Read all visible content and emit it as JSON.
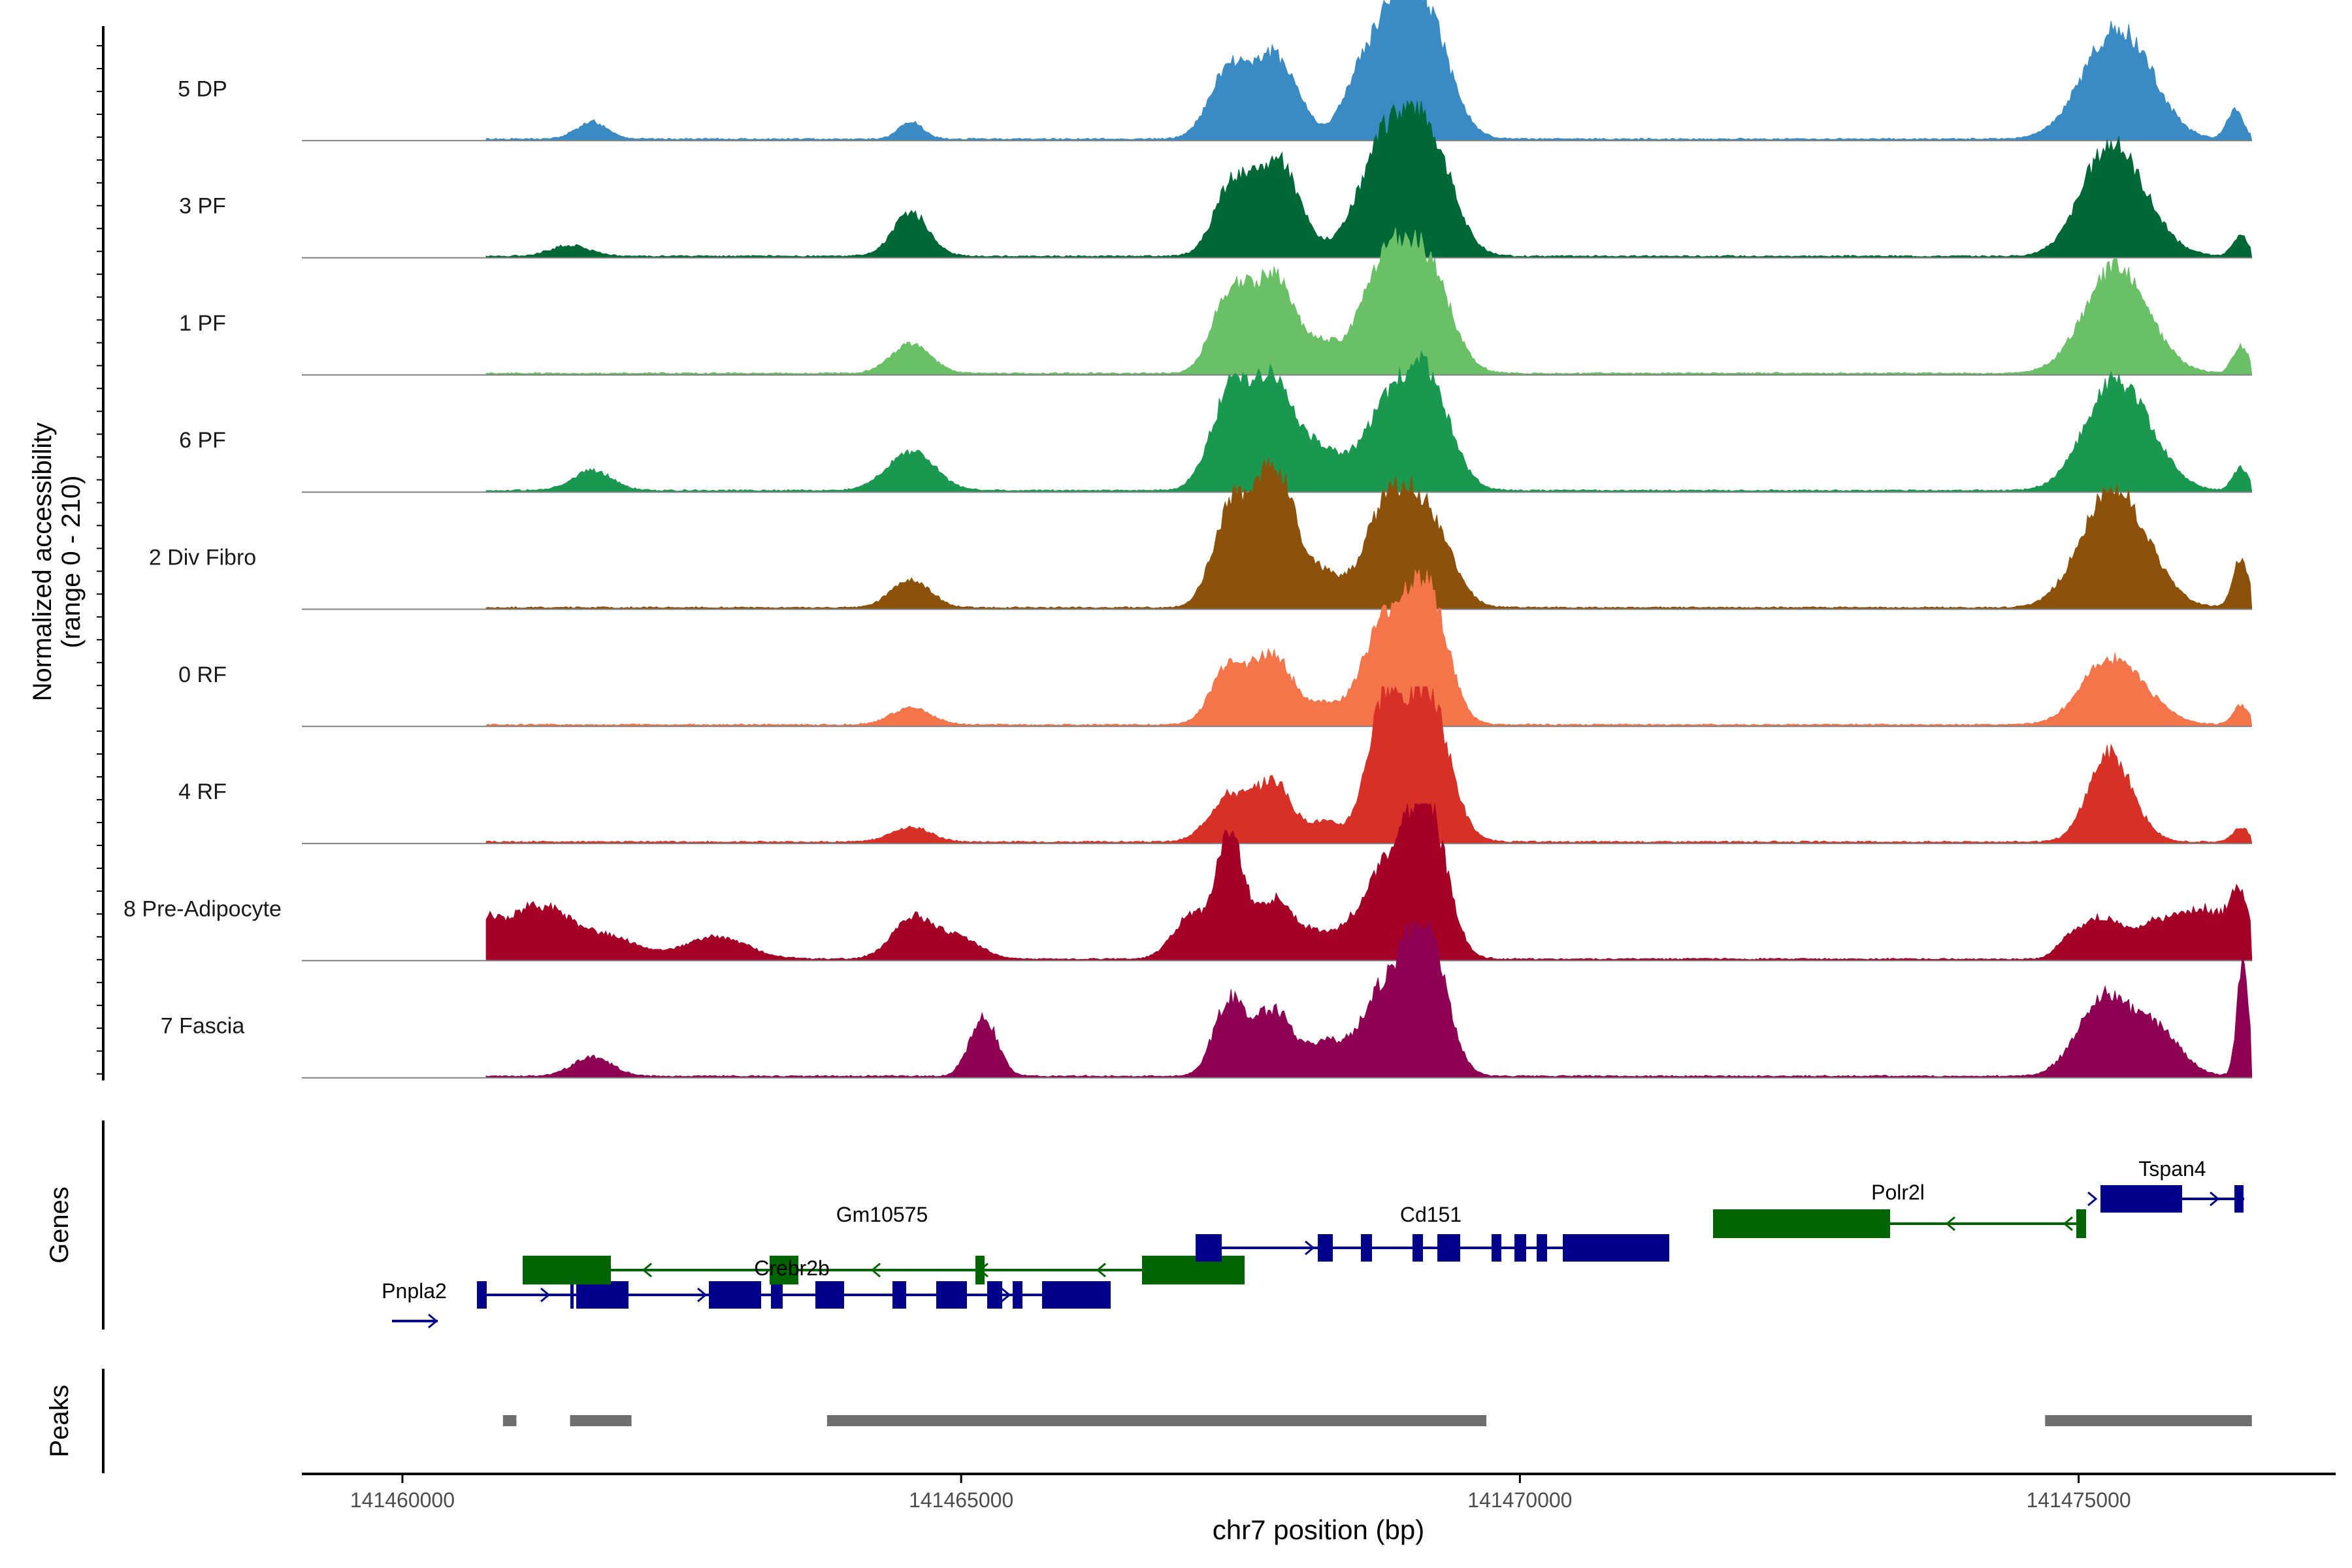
{
  "chart_data": {
    "type": "area",
    "title": "",
    "chromosome": "chr7",
    "xlabel": "chr7 position (bp)",
    "ylabel_line1": "Normalized accessibility",
    "ylabel_line2": "(range 0 - 210)",
    "y_range": [
      0,
      210
    ],
    "xlim": [
      141459100,
      141477300
    ],
    "region": [
      141460750,
      141476550
    ],
    "x_ticks": [
      {
        "value": 141460000,
        "label": "141460000"
      },
      {
        "value": 141465000,
        "label": "141465000"
      },
      {
        "value": 141470000,
        "label": "141470000"
      },
      {
        "value": 141475000,
        "label": "141475000"
      }
    ],
    "tracks": [
      {
        "name": "5 DP",
        "color": "#3a8ac4",
        "peaks": [
          [
            141461700,
            35,
            8
          ],
          [
            141464550,
            35,
            6
          ],
          [
            141467400,
            140,
            10
          ],
          [
            141467820,
            165,
            11
          ],
          [
            141468500,
            28,
            6
          ],
          [
            141468820,
            230,
            14
          ],
          [
            141469180,
            200,
            12
          ],
          [
            141475280,
            180,
            16
          ],
          [
            141475550,
            70,
            14
          ],
          [
            141476400,
            60,
            4
          ]
        ]
      },
      {
        "name": "3 PF",
        "color": "#006837",
        "peaks": [
          [
            141461500,
            22,
            10
          ],
          [
            141464550,
            90,
            9
          ],
          [
            141467420,
            140,
            9
          ],
          [
            141467830,
            195,
            11
          ],
          [
            141468820,
            240,
            14
          ],
          [
            141469200,
            200,
            12
          ],
          [
            141475250,
            195,
            14
          ],
          [
            141475550,
            65,
            14
          ],
          [
            141476450,
            40,
            4
          ]
        ]
      },
      {
        "name": "1 PF",
        "color": "#6ac066",
        "peaks": [
          [
            141464550,
            60,
            10
          ],
          [
            141467400,
            155,
            9
          ],
          [
            141467800,
            195,
            11
          ],
          [
            141468250,
            45,
            8
          ],
          [
            141468800,
            215,
            13
          ],
          [
            141469180,
            190,
            12
          ],
          [
            141475280,
            180,
            15
          ],
          [
            141475550,
            55,
            14
          ],
          [
            141476450,
            55,
            4
          ]
        ]
      },
      {
        "name": "6 PF",
        "color": "#1a9850",
        "peaks": [
          [
            141461700,
            40,
            10
          ],
          [
            141464550,
            80,
            12
          ],
          [
            141467400,
            180,
            10
          ],
          [
            141467800,
            215,
            12
          ],
          [
            141468250,
            60,
            8
          ],
          [
            141468800,
            150,
            14
          ],
          [
            141469170,
            200,
            12
          ],
          [
            141475250,
            170,
            14
          ],
          [
            141475550,
            95,
            14
          ],
          [
            141476450,
            45,
            4
          ]
        ]
      },
      {
        "name": "2 Div Fibro",
        "color": "#8c510a",
        "peaks": [
          [
            141464550,
            55,
            10
          ],
          [
            141467400,
            180,
            9
          ],
          [
            141467800,
            290,
            11
          ],
          [
            141468250,
            55,
            8
          ],
          [
            141468800,
            190,
            12
          ],
          [
            141469170,
            175,
            12
          ],
          [
            141475250,
            200,
            15
          ],
          [
            141475550,
            75,
            14
          ],
          [
            141476450,
            100,
            4
          ]
        ]
      },
      {
        "name": "0 RF",
        "color": "#f4754a",
        "peaks": [
          [
            141464550,
            35,
            10
          ],
          [
            141467400,
            120,
            9
          ],
          [
            141467800,
            140,
            10
          ],
          [
            141468250,
            35,
            8
          ],
          [
            141468800,
            205,
            12
          ],
          [
            141469180,
            255,
            10
          ],
          [
            141475250,
            115,
            14
          ],
          [
            141475550,
            40,
            14
          ],
          [
            141476450,
            40,
            4
          ]
        ]
      },
      {
        "name": "4 RF",
        "color": "#d73027",
        "peaks": [
          [
            141464550,
            30,
            10
          ],
          [
            141467400,
            95,
            10
          ],
          [
            141467800,
            120,
            9
          ],
          [
            141468250,
            40,
            8
          ],
          [
            141468780,
            260,
            9
          ],
          [
            141469170,
            300,
            11
          ],
          [
            141475250,
            160,
            10
          ],
          [
            141475450,
            40,
            10
          ],
          [
            141476450,
            30,
            4
          ]
        ]
      },
      {
        "name": "8 Pre-Adipocyte",
        "color": "#a50026",
        "peaks": [
          [
            141460750,
            50,
            5
          ],
          [
            141461000,
            70,
            12
          ],
          [
            141461350,
            80,
            12
          ],
          [
            141461850,
            45,
            14
          ],
          [
            141462800,
            45,
            16
          ],
          [
            141464550,
            80,
            10
          ],
          [
            141464950,
            45,
            12
          ],
          [
            141467050,
            85,
            9
          ],
          [
            141467400,
            240,
            7
          ],
          [
            141467800,
            120,
            10
          ],
          [
            141468200,
            40,
            10
          ],
          [
            141468800,
            175,
            14
          ],
          [
            141469170,
            280,
            10
          ],
          [
            141474900,
            30,
            6
          ],
          [
            141475200,
            80,
            10
          ],
          [
            141475700,
            70,
            12
          ],
          [
            141476150,
            95,
            12
          ],
          [
            141476450,
            110,
            5
          ]
        ]
      },
      {
        "name": "7 Fascia",
        "color": "#8e0152",
        "peaks": [
          [
            141461700,
            38,
            10
          ],
          [
            141465200,
            120,
            7
          ],
          [
            141467400,
            150,
            8
          ],
          [
            141467800,
            135,
            10
          ],
          [
            141468250,
            60,
            8
          ],
          [
            141468800,
            180,
            13
          ],
          [
            141469170,
            270,
            10
          ],
          [
            141475220,
            160,
            13
          ],
          [
            141475700,
            90,
            12
          ],
          [
            141476470,
            230,
            3
          ]
        ]
      }
    ],
    "genes": [
      {
        "name": "Pnpla2",
        "label_x": 141461000,
        "label_row": 3
      },
      {
        "name": "Crebr2b",
        "label_x": 141465000,
        "label_row": 2
      },
      {
        "name": "Gm10575",
        "label_x": 141465200,
        "label_row": 1
      },
      {
        "name": "Cd151",
        "label_x": 141469250,
        "label_row": 1
      },
      {
        "name": "Polr2l",
        "label_x": 141473200,
        "label_row": 0
      },
      {
        "name": "Tspan4",
        "label_x": 141475700,
        "label_row": -1
      }
    ],
    "gene_track_label": "Genes",
    "peak_track_label": "Peaks",
    "peak_regions": [
      [
        141460900,
        141461020
      ],
      [
        141461500,
        141462050
      ],
      [
        141463800,
        141469700
      ],
      [
        141474700,
        141476550
      ]
    ],
    "colors": {
      "plus_strand": "#00008b",
      "minus_strand": "#006400",
      "peak_region": "#6e6e6e",
      "baseline": "#808080",
      "axis": "#000000"
    }
  }
}
